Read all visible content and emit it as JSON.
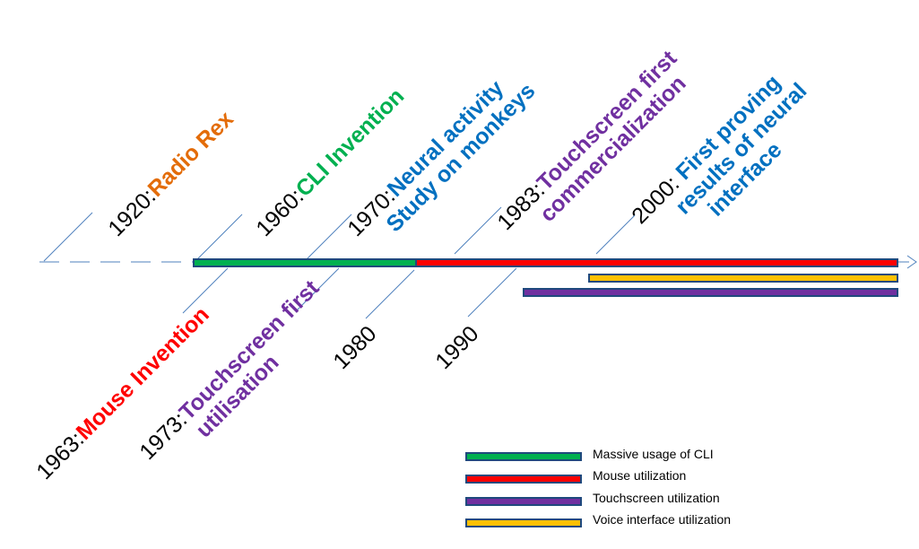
{
  "milestones_above": [
    {
      "year": "1920:",
      "event": "Radio Rex",
      "color": "#E36C09"
    },
    {
      "year": "1960:",
      "event": "CLI Invention",
      "color": "#00B050"
    },
    {
      "year": "1970:",
      "event": "Neural  activity",
      "line2": "Study on monkeys",
      "color": "#0070C0"
    },
    {
      "year": "1983:",
      "event": "Touchscreen first",
      "line2": "commercialization",
      "color": "#7030A0"
    },
    {
      "year": "2000: ",
      "event": "First proving",
      "line2": "results of neural",
      "line3": "interface",
      "color": "#0070C0"
    }
  ],
  "milestones_below": [
    {
      "year": "1963:",
      "event": "Mouse Invention",
      "color": "#FF0000"
    },
    {
      "year": "1973:",
      "event": "Touchscreen first",
      "line2": "utilisation",
      "color": "#7030A0"
    },
    {
      "year": "1980"
    },
    {
      "year": "1990"
    }
  ],
  "bars": [
    {
      "name": "Massive usage of CLI",
      "fill": "#00B050",
      "from": 1960,
      "to": 1980
    },
    {
      "name": "Mouse utilization",
      "fill": "#FF0000",
      "from": 1980,
      "to": 2030
    },
    {
      "name": "Voice interface utilization",
      "fill": "#FFC000",
      "from": 2000,
      "to": 2030
    },
    {
      "name": "Touchscreen utilization",
      "fill": "#7030A0",
      "from": 1990,
      "to": 2030
    }
  ],
  "legend": [
    {
      "label": "Massive usage of CLI",
      "fill": "#00B050"
    },
    {
      "label": "Mouse utilization",
      "fill": "#FF0000"
    },
    {
      "label": "Touchscreen utilization",
      "fill": "#7030A0"
    },
    {
      "label": "Voice interface utilization",
      "fill": "#FFC000"
    }
  ],
  "colors": {
    "axis": "#4F81BD",
    "bar_border": "#1F497D"
  }
}
